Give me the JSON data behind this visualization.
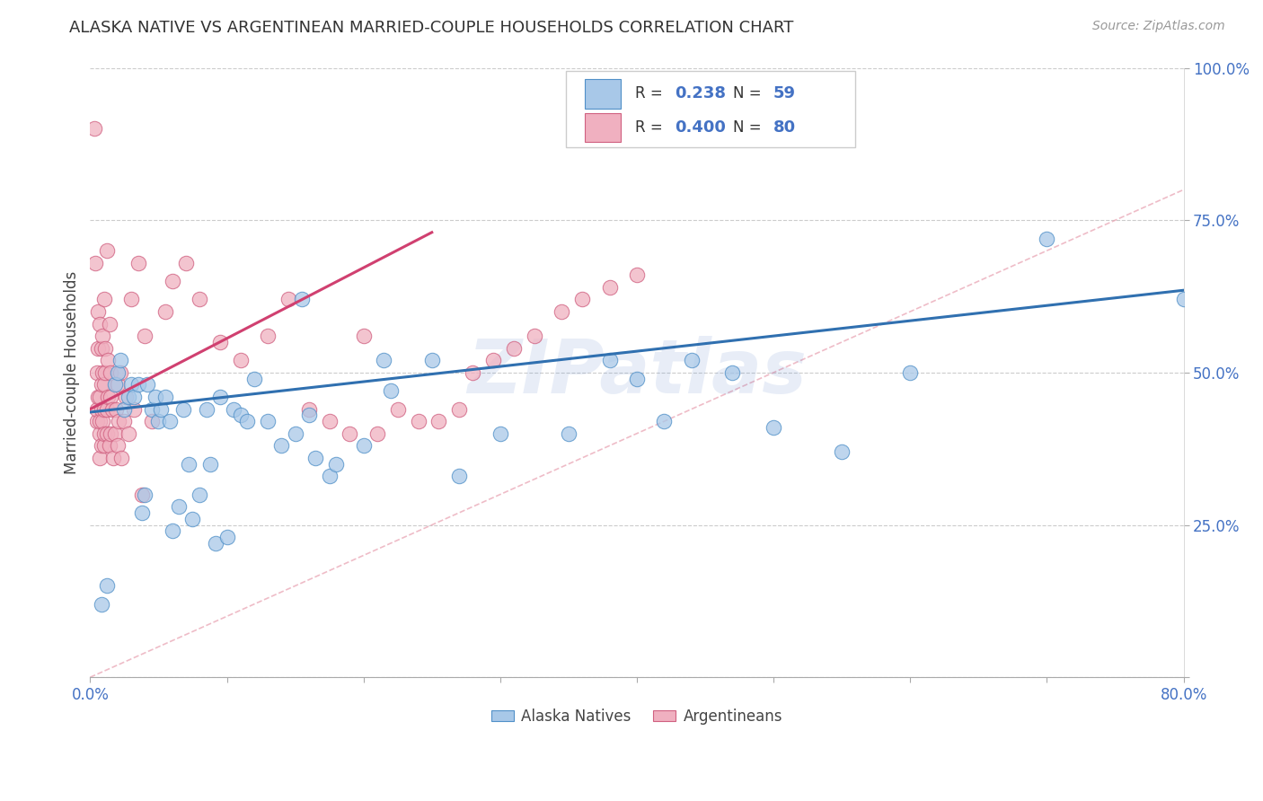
{
  "title": "ALASKA NATIVE VS ARGENTINEAN MARRIED-COUPLE HOUSEHOLDS CORRELATION CHART",
  "source": "Source: ZipAtlas.com",
  "ylabel": "Married-couple Households",
  "xlim": [
    0.0,
    0.8
  ],
  "ylim": [
    0.0,
    1.0
  ],
  "xtick_positions": [
    0.0,
    0.1,
    0.2,
    0.3,
    0.4,
    0.5,
    0.6,
    0.7,
    0.8
  ],
  "xticklabels": [
    "0.0%",
    "",
    "",
    "",
    "",
    "",
    "",
    "",
    "80.0%"
  ],
  "ytick_positions": [
    0.0,
    0.25,
    0.5,
    0.75,
    1.0
  ],
  "yticklabels": [
    "",
    "25.0%",
    "50.0%",
    "75.0%",
    "100.0%"
  ],
  "legend1_label": "Alaska Natives",
  "legend2_label": "Argentineans",
  "R_blue": 0.238,
  "N_blue": 59,
  "R_pink": 0.4,
  "N_pink": 80,
  "color_blue_fill": "#a8c8e8",
  "color_blue_edge": "#5090c8",
  "color_pink_fill": "#f0b0c0",
  "color_pink_edge": "#d06080",
  "color_blue_line": "#3070b0",
  "color_pink_line": "#d04070",
  "color_diag": "#e8a0b0",
  "watermark": "ZIPatlas",
  "blue_x": [
    0.008,
    0.012,
    0.018,
    0.02,
    0.022,
    0.025,
    0.028,
    0.03,
    0.032,
    0.035,
    0.038,
    0.04,
    0.042,
    0.045,
    0.048,
    0.05,
    0.052,
    0.055,
    0.058,
    0.06,
    0.065,
    0.068,
    0.072,
    0.075,
    0.08,
    0.085,
    0.088,
    0.092,
    0.095,
    0.1,
    0.105,
    0.11,
    0.115,
    0.12,
    0.13,
    0.14,
    0.15,
    0.155,
    0.16,
    0.165,
    0.175,
    0.18,
    0.2,
    0.215,
    0.22,
    0.25,
    0.27,
    0.3,
    0.35,
    0.38,
    0.4,
    0.42,
    0.44,
    0.47,
    0.5,
    0.55,
    0.6,
    0.7,
    0.8
  ],
  "blue_y": [
    0.12,
    0.15,
    0.48,
    0.5,
    0.52,
    0.44,
    0.46,
    0.48,
    0.46,
    0.48,
    0.27,
    0.3,
    0.48,
    0.44,
    0.46,
    0.42,
    0.44,
    0.46,
    0.42,
    0.24,
    0.28,
    0.44,
    0.35,
    0.26,
    0.3,
    0.44,
    0.35,
    0.22,
    0.46,
    0.23,
    0.44,
    0.43,
    0.42,
    0.49,
    0.42,
    0.38,
    0.4,
    0.62,
    0.43,
    0.36,
    0.33,
    0.35,
    0.38,
    0.52,
    0.47,
    0.52,
    0.33,
    0.4,
    0.4,
    0.52,
    0.49,
    0.42,
    0.52,
    0.5,
    0.41,
    0.37,
    0.5,
    0.72,
    0.62
  ],
  "pink_x": [
    0.003,
    0.004,
    0.005,
    0.005,
    0.005,
    0.006,
    0.006,
    0.006,
    0.007,
    0.007,
    0.007,
    0.007,
    0.007,
    0.008,
    0.008,
    0.008,
    0.008,
    0.009,
    0.009,
    0.009,
    0.01,
    0.01,
    0.01,
    0.01,
    0.01,
    0.011,
    0.011,
    0.012,
    0.012,
    0.012,
    0.013,
    0.013,
    0.014,
    0.014,
    0.015,
    0.015,
    0.015,
    0.016,
    0.017,
    0.018,
    0.019,
    0.02,
    0.02,
    0.021,
    0.022,
    0.023,
    0.025,
    0.026,
    0.028,
    0.03,
    0.032,
    0.035,
    0.038,
    0.04,
    0.045,
    0.055,
    0.06,
    0.07,
    0.08,
    0.095,
    0.11,
    0.13,
    0.145,
    0.16,
    0.175,
    0.19,
    0.2,
    0.21,
    0.225,
    0.24,
    0.255,
    0.27,
    0.28,
    0.295,
    0.31,
    0.325,
    0.345,
    0.36,
    0.38,
    0.4
  ],
  "pink_y": [
    0.9,
    0.68,
    0.42,
    0.44,
    0.5,
    0.46,
    0.54,
    0.6,
    0.36,
    0.4,
    0.42,
    0.46,
    0.58,
    0.38,
    0.44,
    0.48,
    0.54,
    0.42,
    0.5,
    0.56,
    0.38,
    0.4,
    0.44,
    0.48,
    0.62,
    0.5,
    0.54,
    0.4,
    0.44,
    0.7,
    0.46,
    0.52,
    0.38,
    0.58,
    0.4,
    0.46,
    0.5,
    0.44,
    0.36,
    0.4,
    0.44,
    0.38,
    0.48,
    0.42,
    0.5,
    0.36,
    0.42,
    0.46,
    0.4,
    0.62,
    0.44,
    0.68,
    0.3,
    0.56,
    0.42,
    0.6,
    0.65,
    0.68,
    0.62,
    0.55,
    0.52,
    0.56,
    0.62,
    0.44,
    0.42,
    0.4,
    0.56,
    0.4,
    0.44,
    0.42,
    0.42,
    0.44,
    0.5,
    0.52,
    0.54,
    0.56,
    0.6,
    0.62,
    0.64,
    0.66
  ],
  "blue_line_x0": 0.0,
  "blue_line_y0": 0.435,
  "blue_line_x1": 0.8,
  "blue_line_y1": 0.635,
  "pink_line_x0": 0.0,
  "pink_line_y0": 0.44,
  "pink_line_x1": 0.25,
  "pink_line_y1": 0.73
}
